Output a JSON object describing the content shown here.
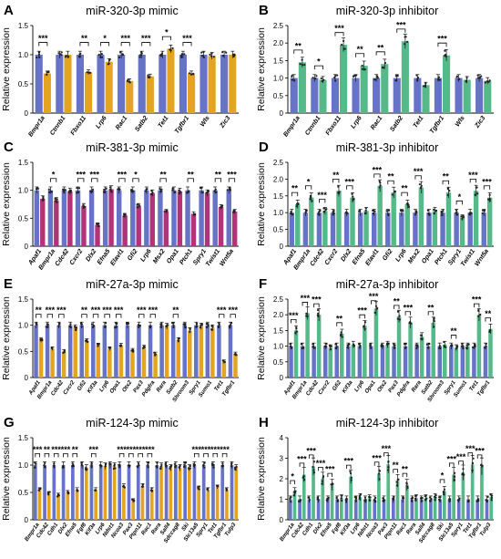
{
  "figure": {
    "ylabel": "Relative expression"
  },
  "colors": {
    "blue": "#6673c7",
    "gold": "#e3a521",
    "orange": "#e58a2f",
    "green": "#56b98a",
    "magenta": "#b23478",
    "olive": "#cfc23a",
    "dots": "#222222"
  },
  "chart_data": [
    {
      "panel": "A",
      "title": "miR-320-3p mimic",
      "type": "bar",
      "treatment_color": "gold",
      "ylim": [
        0,
        1.5
      ],
      "yticks": [
        0,
        0.5,
        1.0,
        1.5
      ],
      "ytick_labels": [
        "0",
        "0.5",
        "1.0",
        "1.5"
      ],
      "categories": [
        "Bmpr1a",
        "Ctnnb1",
        "Fbxo11",
        "Lrp6",
        "Rac1",
        "Satb2",
        "Tet1",
        "Tgfbr1",
        "Wls",
        "Zic3"
      ],
      "series": [
        {
          "values": [
            1.0,
            1.0,
            1.0,
            1.0,
            1.0,
            1.0,
            1.0,
            1.0,
            1.0,
            1.0
          ]
        },
        {
          "values": [
            0.68,
            1.0,
            0.7,
            0.88,
            0.55,
            0.63,
            1.1,
            0.68,
            0.98,
            1.0
          ]
        }
      ],
      "significance": [
        "***",
        "",
        "**",
        "*",
        "***",
        "***",
        "*",
        "***",
        "",
        ""
      ]
    },
    {
      "panel": "B",
      "title": "miR-320-3p inhibitor",
      "type": "bar",
      "treatment_color": "green",
      "ylim": [
        0,
        2.5
      ],
      "yticks": [
        0,
        0.5,
        1.0,
        1.5,
        2.0,
        2.5
      ],
      "ytick_labels": [
        "0",
        "0.5",
        "1.0",
        "1.5",
        "2.0",
        "2.5"
      ],
      "categories": [
        "Bmpr1a",
        "Ctnnb1",
        "Fbxo11",
        "Lrp6",
        "Rac1",
        "Satb2",
        "Tet1",
        "Tgfbr1",
        "Wls",
        "Zic3"
      ],
      "series": [
        {
          "values": [
            1.0,
            1.0,
            1.0,
            1.0,
            1.0,
            1.0,
            1.0,
            1.0,
            1.0,
            1.0
          ]
        },
        {
          "values": [
            1.45,
            0.95,
            1.95,
            1.35,
            1.4,
            2.05,
            0.8,
            1.65,
            0.95,
            0.92
          ]
        }
      ],
      "significance": [
        "**",
        "*",
        "***",
        "**",
        "**",
        "***",
        "",
        "***",
        "",
        ""
      ]
    },
    {
      "panel": "C",
      "title": "miR-381-3p mimic",
      "type": "bar",
      "treatment_color": "magenta",
      "treatment_alt_color": "olive",
      "ylim": [
        0,
        1.5
      ],
      "yticks": [
        0,
        0.5,
        1.0,
        1.5
      ],
      "ytick_labels": [
        "0",
        "0.5",
        "1.0",
        "1.5"
      ],
      "categories": [
        "Apaf1",
        "Bmpr1a",
        "Cdc42",
        "Cxcr2",
        "Dlx2",
        "Efna5",
        "Elavl1",
        "Gfi2",
        "Lrp6",
        "Msx2",
        "Opa1",
        "Ptch1",
        "Spry1",
        "Twist1",
        "Wnt5a"
      ],
      "series": [
        {
          "values": [
            1.0,
            1.0,
            1.0,
            1.0,
            1.0,
            1.0,
            1.0,
            1.0,
            1.0,
            1.0,
            1.0,
            1.0,
            1.0,
            1.0,
            1.0
          ]
        },
        {
          "values": [
            0.85,
            0.82,
            0.98,
            0.72,
            0.38,
            1.02,
            0.55,
            0.72,
            0.95,
            0.62,
            0.98,
            0.58,
            0.95,
            0.7,
            0.62
          ]
        }
      ],
      "significance": [
        "",
        "*",
        "",
        "***",
        "***",
        "",
        "***",
        "*",
        "",
        "**",
        "",
        "**",
        "",
        "**",
        "***"
      ]
    },
    {
      "panel": "D",
      "title": "miR-381-3p inhibitor",
      "type": "bar",
      "treatment_color": "green",
      "ylim": [
        0,
        2.5
      ],
      "yticks": [
        0,
        0.5,
        1.0,
        1.5,
        2.0,
        2.5
      ],
      "ytick_labels": [
        "0",
        "0.5",
        "1.0",
        "1.5",
        "2.0",
        "2.5"
      ],
      "categories": [
        "Apaf1",
        "Bmpr1a",
        "Cdc42",
        "Cxcr2",
        "Dlx2",
        "Efna5",
        "Elavl1",
        "Gfi2",
        "Lrp6",
        "Msx2",
        "Opa1",
        "Ptch1",
        "Spry1",
        "Twist1",
        "Wnt5a"
      ],
      "series": [
        {
          "values": [
            1.0,
            1.0,
            1.0,
            1.0,
            1.0,
            1.0,
            1.0,
            1.0,
            1.0,
            1.0,
            1.0,
            1.0,
            1.0,
            1.0,
            1.0
          ]
        },
        {
          "values": [
            1.25,
            1.45,
            1.05,
            1.65,
            1.45,
            1.05,
            1.8,
            1.6,
            1.25,
            1.75,
            1.05,
            1.6,
            0.85,
            1.65,
            1.45
          ]
        }
      ],
      "significance": [
        "**",
        "*",
        "***",
        "**",
        "***",
        "",
        "***",
        "**",
        "**",
        "***",
        "",
        "**",
        "*",
        "***",
        "***"
      ]
    },
    {
      "panel": "E",
      "title": "miR-27a-3p mimic",
      "type": "bar",
      "treatment_color": "gold",
      "ylim": [
        0,
        1.5
      ],
      "yticks": [
        0,
        0.5,
        1.0,
        1.5
      ],
      "ytick_labels": [
        "0",
        "0.5",
        "1.0",
        "1.5"
      ],
      "categories": [
        "Apaf1",
        "Bmpr1a",
        "Cdc42",
        "Cxcr2",
        "Gfi2",
        "Kif3a",
        "Lrp6",
        "Opa1",
        "Otx2",
        "Pax3",
        "Pdgfra",
        "Rara",
        "Satb2",
        "Shroom3",
        "Spry1",
        "Sumo1",
        "Tet1",
        "Tgfbr1"
      ],
      "series": [
        {
          "values": [
            1.0,
            1.0,
            1.0,
            1.0,
            1.0,
            1.0,
            1.0,
            1.0,
            1.0,
            1.0,
            1.0,
            1.0,
            1.0,
            1.0,
            1.0,
            1.0,
            1.0,
            1.0
          ]
        },
        {
          "values": [
            0.72,
            0.55,
            0.5,
            0.95,
            0.7,
            0.62,
            0.55,
            0.62,
            0.52,
            0.58,
            0.45,
            0.98,
            0.72,
            0.9,
            0.98,
            0.95,
            0.3,
            0.45
          ]
        }
      ],
      "significance": [
        "**",
        "***",
        "***",
        "",
        "**",
        "***",
        "***",
        "***",
        "",
        "***",
        "***",
        "",
        "**",
        "",
        "",
        "",
        "***",
        "***"
      ]
    },
    {
      "panel": "F",
      "title": "miR-27a-3p inhibitor",
      "type": "bar",
      "treatment_color": "green",
      "ylim": [
        0,
        2.5
      ],
      "yticks": [
        0,
        0.5,
        1.0,
        1.5,
        2.0,
        2.5
      ],
      "ytick_labels": [
        "0",
        "0.5",
        "1.0",
        "1.5",
        "2.0",
        "2.5"
      ],
      "categories": [
        "Apaf1",
        "Bmpr1a",
        "Cdc42",
        "Cxcr2",
        "Gfi2",
        "Kif3a",
        "Lrp6",
        "Opa1",
        "Otx2",
        "Pax3",
        "Pdgfra",
        "Rara",
        "Satb2",
        "Shroom3",
        "Spry1",
        "Sumo1",
        "Tet1",
        "Tgfbr1"
      ],
      "series": [
        {
          "values": [
            1.0,
            1.0,
            1.0,
            1.0,
            1.0,
            1.0,
            1.0,
            1.0,
            1.0,
            1.0,
            1.0,
            1.0,
            1.0,
            1.0,
            1.0,
            1.0,
            1.0,
            1.0
          ]
        },
        {
          "values": [
            1.5,
            2.05,
            2.0,
            0.95,
            1.4,
            1.05,
            1.65,
            2.2,
            1.05,
            1.95,
            1.75,
            1.3,
            1.75,
            1.05,
            0.95,
            1.0,
            2.0,
            1.55
          ]
        }
      ],
      "significance": [
        "***",
        "***",
        "***",
        "",
        "**",
        "",
        "***",
        "***",
        "",
        "**",
        "***",
        "",
        "**",
        "",
        "**",
        "",
        "***",
        "**"
      ]
    },
    {
      "panel": "G",
      "title": "miR-124-3p mimic",
      "type": "bar",
      "treatment_color": "gold",
      "treatment_alt_color": "magenta",
      "ylim": [
        0,
        1.5
      ],
      "yticks": [
        0,
        0.5,
        1.0,
        1.5
      ],
      "ytick_labels": [
        "0",
        "0.5",
        "1.0",
        "1.5"
      ],
      "categories": [
        "Bmpr1a",
        "Cdc42",
        "Cdh1",
        "Dlx2",
        "Efna5",
        "Fgf8",
        "Kif3a",
        "Lrp6",
        "Ndst1",
        "Ncoa3",
        "Pax3",
        "Ptpn11",
        "Rac1",
        "Rara",
        "Sall4",
        "Sdccag8",
        "Ski",
        "Slc13a5",
        "Spry1",
        "Tet1",
        "Tgfbr1",
        "Tulp3"
      ],
      "series": [
        {
          "values": [
            1.0,
            1.0,
            1.0,
            1.0,
            1.0,
            1.0,
            1.0,
            1.0,
            1.0,
            1.0,
            1.0,
            1.0,
            1.0,
            1.0,
            1.0,
            1.0,
            1.0,
            1.0,
            1.0,
            1.0,
            1.0,
            1.0
          ]
        },
        {
          "values": [
            0.55,
            0.48,
            0.45,
            0.5,
            0.55,
            0.95,
            0.55,
            0.98,
            0.98,
            0.62,
            0.35,
            0.62,
            0.55,
            0.98,
            0.95,
            0.95,
            0.95,
            0.58,
            0.55,
            0.6,
            0.55,
            0.95
          ]
        }
      ],
      "significance": [
        "***",
        "**",
        "***",
        "***",
        "**",
        "",
        "***",
        "",
        "",
        "***",
        "***",
        "***",
        "***",
        "",
        "",
        "",
        "",
        "***",
        "***",
        "***",
        "***",
        ""
      ]
    },
    {
      "panel": "H",
      "title": "miR-124-3p inhibitor",
      "type": "bar",
      "treatment_color": "green",
      "ylim": [
        0,
        4
      ],
      "yticks": [
        0,
        1,
        2,
        3,
        4
      ],
      "ytick_labels": [
        "0",
        "1",
        "2",
        "3",
        "4"
      ],
      "categories": [
        "Bmpr1a",
        "Cdc42",
        "Cdh1",
        "Dlx2",
        "Efna5",
        "Fgf8",
        "Kif3a",
        "Lrp6",
        "Ndst1",
        "Ncoa3",
        "Pax3",
        "Ptpn11",
        "Rac1",
        "Rara",
        "Sall4",
        "Sdccag8",
        "Ski",
        "Slc13a5",
        "Spry1",
        "Tet1",
        "Tgfbr1",
        "Tulp3"
      ],
      "series": [
        {
          "values": [
            1.0,
            1.0,
            1.0,
            1.0,
            1.0,
            1.0,
            1.0,
            1.0,
            1.0,
            1.0,
            1.0,
            1.0,
            1.0,
            1.0,
            1.0,
            1.0,
            1.0,
            1.0,
            1.0,
            1.0,
            1.0,
            1.0
          ]
        },
        {
          "values": [
            1.35,
            2.2,
            2.6,
            2.0,
            1.7,
            1.05,
            2.1,
            1.1,
            1.05,
            2.25,
            2.7,
            1.9,
            1.7,
            1.05,
            1.05,
            1.1,
            1.4,
            2.2,
            2.3,
            2.7,
            2.6,
            1.1
          ]
        }
      ],
      "significance": [
        "*",
        "***",
        "***",
        "***",
        "***",
        "",
        "***",
        "",
        "",
        "***",
        "***",
        "**",
        "**",
        "",
        "",
        "",
        "*",
        "***",
        "***",
        "***",
        "***",
        ""
      ]
    }
  ]
}
